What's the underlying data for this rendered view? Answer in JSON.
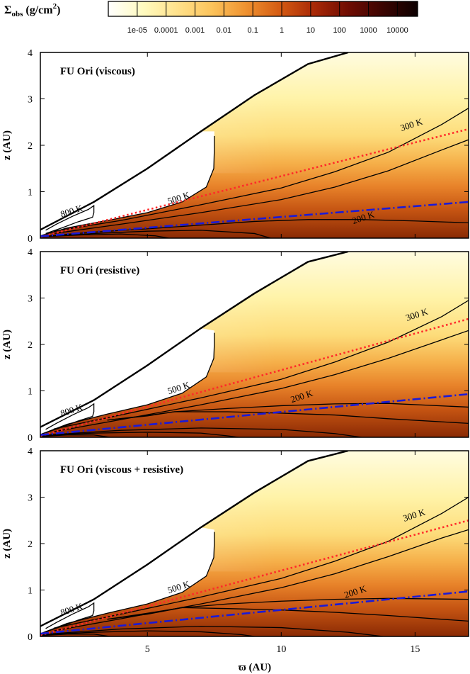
{
  "colorbar": {
    "label_main": "Σ",
    "label_sub": "obs",
    "label_unit": " (g/cm",
    "label_sup": "2",
    "label_close": ")",
    "ticks": [
      "1e-05",
      "0.0001",
      "0.001",
      "0.01",
      "0.1",
      "1",
      "10",
      "100",
      "1000",
      "10000"
    ],
    "log_min": -6,
    "log_max": 4.7,
    "colors": [
      "#ffffff",
      "#fffbc0",
      "#ffe28c",
      "#fcc45c",
      "#ef9230",
      "#d45a12",
      "#a82806",
      "#6e0c02",
      "#3a0401",
      "#0c0000"
    ]
  },
  "axes": {
    "xlabel": "ϖ (AU)",
    "ylabel": "z (AU)",
    "xlim": [
      1,
      17
    ],
    "ylim": [
      0,
      4
    ],
    "xticks": [
      5,
      10,
      15
    ],
    "yticks": [
      0,
      1,
      2,
      3,
      4
    ]
  },
  "chart_data": [
    {
      "type": "heatmap",
      "title": "FU Ori (viscous)",
      "line_red": {
        "x": [
          1,
          17
        ],
        "y": [
          0.03,
          2.35
        ],
        "color": "#ff2a2a",
        "style": "dotted"
      },
      "line_blue": {
        "x": [
          1,
          17
        ],
        "y": [
          0.04,
          0.78
        ],
        "color": "#1a1ad8",
        "style": "dashdot"
      },
      "contours": [
        {
          "label": "800 K",
          "label_x": 2.2,
          "label_y": 0.52,
          "x": [
            1.2,
            1.8,
            2.4,
            2.95,
            3.0,
            3.0,
            2.8,
            2.2,
            1.6,
            1.2
          ],
          "y": [
            0.1,
            0.22,
            0.35,
            0.45,
            0.55,
            0.7,
            0.62,
            0.47,
            0.3,
            0.17
          ]
        },
        {
          "label": "500 K",
          "label_x": 6.2,
          "label_y": 0.8,
          "x": [
            1.0,
            2.0,
            3.5,
            5.0,
            6.3,
            7.2,
            7.48,
            7.5,
            7.5
          ],
          "y": [
            0.05,
            0.22,
            0.38,
            0.55,
            0.78,
            1.1,
            1.5,
            1.9,
            2.2
          ]
        },
        {
          "label": "300 K",
          "label_x": 14.9,
          "label_y": 2.38,
          "x": [
            1.5,
            4,
            7,
            10,
            12,
            14,
            16,
            17
          ],
          "y": [
            0.15,
            0.38,
            0.72,
            1.08,
            1.43,
            1.85,
            2.45,
            2.8
          ]
        },
        {
          "label": "",
          "label_x": 0,
          "label_y": 0,
          "x": [
            1.5,
            4,
            7,
            10,
            12,
            14,
            16,
            17
          ],
          "y": [
            0.1,
            0.3,
            0.55,
            0.83,
            1.1,
            1.45,
            1.9,
            2.12
          ]
        },
        {
          "label": "200 K",
          "label_x": 13.1,
          "label_y": 0.38,
          "x": [
            1.3,
            3,
            5,
            7,
            9,
            11,
            13,
            15,
            17
          ],
          "y": [
            0.05,
            0.13,
            0.2,
            0.28,
            0.36,
            0.4,
            0.4,
            0.37,
            0.33
          ]
        },
        {
          "label": "",
          "label_x": 0,
          "label_y": 0,
          "x": [
            1.2,
            3,
            5,
            7,
            9,
            9.6
          ],
          "y": [
            0.04,
            0.1,
            0.15,
            0.17,
            0.1,
            0.0
          ]
        },
        {
          "label": "",
          "label_x": 0,
          "label_y": 0,
          "x": [
            1.1,
            2.5,
            4,
            5.3,
            5.8
          ],
          "y": [
            0.03,
            0.07,
            0.09,
            0.05,
            0.0
          ]
        }
      ],
      "surface": {
        "x": [
          1,
          3,
          5,
          7,
          9,
          11,
          12.5
        ],
        "y": [
          0.18,
          0.78,
          1.5,
          2.3,
          3.08,
          3.75,
          4.0
        ]
      }
    },
    {
      "type": "heatmap",
      "title": "FU Ori (resistive)",
      "line_red": {
        "x": [
          1,
          17
        ],
        "y": [
          0.03,
          2.55
        ],
        "color": "#ff2a2a",
        "style": "dotted"
      },
      "line_blue": {
        "x": [
          1,
          17
        ],
        "y": [
          0.05,
          0.93
        ],
        "color": "#1a1ad8",
        "style": "dashdot"
      },
      "contours": [
        {
          "label": "800 K",
          "label_x": 2.2,
          "label_y": 0.52,
          "x": [
            1.2,
            1.8,
            2.4,
            2.95,
            3.0,
            3.0,
            2.8,
            2.2,
            1.6,
            1.2
          ],
          "y": [
            0.1,
            0.22,
            0.35,
            0.45,
            0.55,
            0.72,
            0.64,
            0.48,
            0.3,
            0.17
          ]
        },
        {
          "label": "500 K",
          "label_x": 6.2,
          "label_y": 1.0,
          "x": [
            1.0,
            2.0,
            3.5,
            5.0,
            6.3,
            7.2,
            7.48,
            7.5,
            7.5
          ],
          "y": [
            0.06,
            0.28,
            0.5,
            0.7,
            0.95,
            1.3,
            1.7,
            2.0,
            2.25
          ]
        },
        {
          "label": "300 K",
          "label_x": 15.1,
          "label_y": 2.58,
          "x": [
            1.5,
            4,
            7,
            10,
            12,
            14,
            16,
            17
          ],
          "y": [
            0.18,
            0.48,
            0.85,
            1.25,
            1.62,
            2.05,
            2.6,
            2.95
          ]
        },
        {
          "label": "",
          "label_x": 0,
          "label_y": 0,
          "x": [
            1.5,
            4,
            7,
            10,
            12,
            14,
            16,
            17
          ],
          "y": [
            0.12,
            0.38,
            0.7,
            1.05,
            1.35,
            1.7,
            2.1,
            2.3
          ]
        },
        {
          "label": "200 K",
          "label_x": 10.8,
          "label_y": 0.82,
          "x": [
            3.5,
            5,
            6,
            8,
            10,
            12,
            14,
            17
          ],
          "y": [
            0.37,
            0.47,
            0.55,
            0.62,
            0.68,
            0.72,
            0.73,
            0.65
          ]
        },
        {
          "label": "",
          "label_x": 0,
          "label_y": 0,
          "x": [
            3.5,
            5,
            6,
            8,
            10,
            12,
            14,
            17
          ],
          "y": [
            0.37,
            0.46,
            0.55,
            0.55,
            0.52,
            0.48,
            0.4,
            0.3
          ]
        },
        {
          "label": "",
          "label_x": 0,
          "label_y": 0,
          "x": [
            1.2,
            4,
            7,
            10,
            12,
            13
          ],
          "y": [
            0.05,
            0.15,
            0.2,
            0.17,
            0.08,
            0.0
          ]
        },
        {
          "label": "",
          "label_x": 0,
          "label_y": 0,
          "x": [
            1.1,
            3,
            5,
            7,
            8,
            8.4
          ],
          "y": [
            0.04,
            0.09,
            0.11,
            0.09,
            0.03,
            0.0
          ]
        },
        {
          "label": "",
          "label_x": 0,
          "label_y": 0,
          "x": [
            1.05,
            2,
            3,
            3.6
          ],
          "y": [
            0.02,
            0.05,
            0.05,
            0.0
          ]
        }
      ],
      "surface": {
        "x": [
          1,
          3,
          5,
          7,
          9,
          11,
          12.5
        ],
        "y": [
          0.22,
          0.8,
          1.55,
          2.35,
          3.1,
          3.78,
          4.0
        ]
      }
    },
    {
      "type": "heatmap",
      "title": "FU Ori (viscous + resistive)",
      "line_red": {
        "x": [
          1,
          17
        ],
        "y": [
          0.03,
          2.5
        ],
        "color": "#ff2a2a",
        "style": "dotted"
      },
      "line_blue": {
        "x": [
          1,
          17
        ],
        "y": [
          0.06,
          0.97
        ],
        "color": "#1a1ad8",
        "style": "dashdot"
      },
      "contours": [
        {
          "label": "800 K",
          "label_x": 2.2,
          "label_y": 0.52,
          "x": [
            1.2,
            1.8,
            2.4,
            2.95,
            3.0,
            3.0,
            2.8,
            2.2,
            1.6,
            1.2
          ],
          "y": [
            0.1,
            0.22,
            0.35,
            0.45,
            0.55,
            0.72,
            0.64,
            0.48,
            0.3,
            0.17
          ]
        },
        {
          "label": "500 K",
          "label_x": 6.2,
          "label_y": 1.0,
          "x": [
            1.0,
            2.0,
            3.5,
            5.0,
            6.3,
            7.2,
            7.48,
            7.5,
            7.5
          ],
          "y": [
            0.06,
            0.28,
            0.5,
            0.7,
            0.95,
            1.3,
            1.7,
            2.0,
            2.25
          ]
        },
        {
          "label": "300 K",
          "label_x": 15.0,
          "label_y": 2.55,
          "x": [
            1.5,
            4,
            7,
            10,
            12,
            14,
            16,
            17
          ],
          "y": [
            0.18,
            0.48,
            0.85,
            1.25,
            1.62,
            2.05,
            2.65,
            3.0
          ]
        },
        {
          "label": "",
          "label_x": 0,
          "label_y": 0,
          "x": [
            1.5,
            4,
            7,
            10,
            12,
            14,
            16,
            17
          ],
          "y": [
            0.12,
            0.38,
            0.7,
            1.05,
            1.35,
            1.72,
            2.12,
            2.3
          ]
        },
        {
          "label": "200 K",
          "label_x": 12.8,
          "label_y": 0.9,
          "x": [
            3.5,
            5,
            6.3,
            8,
            10,
            12,
            14,
            17
          ],
          "y": [
            0.37,
            0.5,
            0.62,
            0.7,
            0.76,
            0.8,
            0.82,
            0.8
          ]
        },
        {
          "label": "",
          "label_x": 0,
          "label_y": 0,
          "x": [
            3.5,
            5,
            6.3,
            8,
            10,
            12,
            14,
            17
          ],
          "y": [
            0.37,
            0.48,
            0.62,
            0.6,
            0.57,
            0.52,
            0.45,
            0.33
          ]
        },
        {
          "label": "",
          "label_x": 0,
          "label_y": 0,
          "x": [
            1.2,
            4,
            7,
            10,
            12.5,
            13.8
          ],
          "y": [
            0.05,
            0.16,
            0.22,
            0.19,
            0.09,
            0.0
          ]
        },
        {
          "label": "",
          "label_x": 0,
          "label_y": 0,
          "x": [
            1.1,
            3,
            5,
            7,
            8.5,
            9
          ],
          "y": [
            0.04,
            0.09,
            0.12,
            0.1,
            0.04,
            0.0
          ]
        },
        {
          "label": "",
          "label_x": 0,
          "label_y": 0,
          "x": [
            1.05,
            2,
            3,
            3.6
          ],
          "y": [
            0.02,
            0.05,
            0.05,
            0.0
          ]
        }
      ],
      "surface": {
        "x": [
          1,
          3,
          5,
          7,
          9,
          11,
          12.5
        ],
        "y": [
          0.22,
          0.8,
          1.55,
          2.35,
          3.1,
          3.78,
          4.0
        ]
      }
    }
  ]
}
